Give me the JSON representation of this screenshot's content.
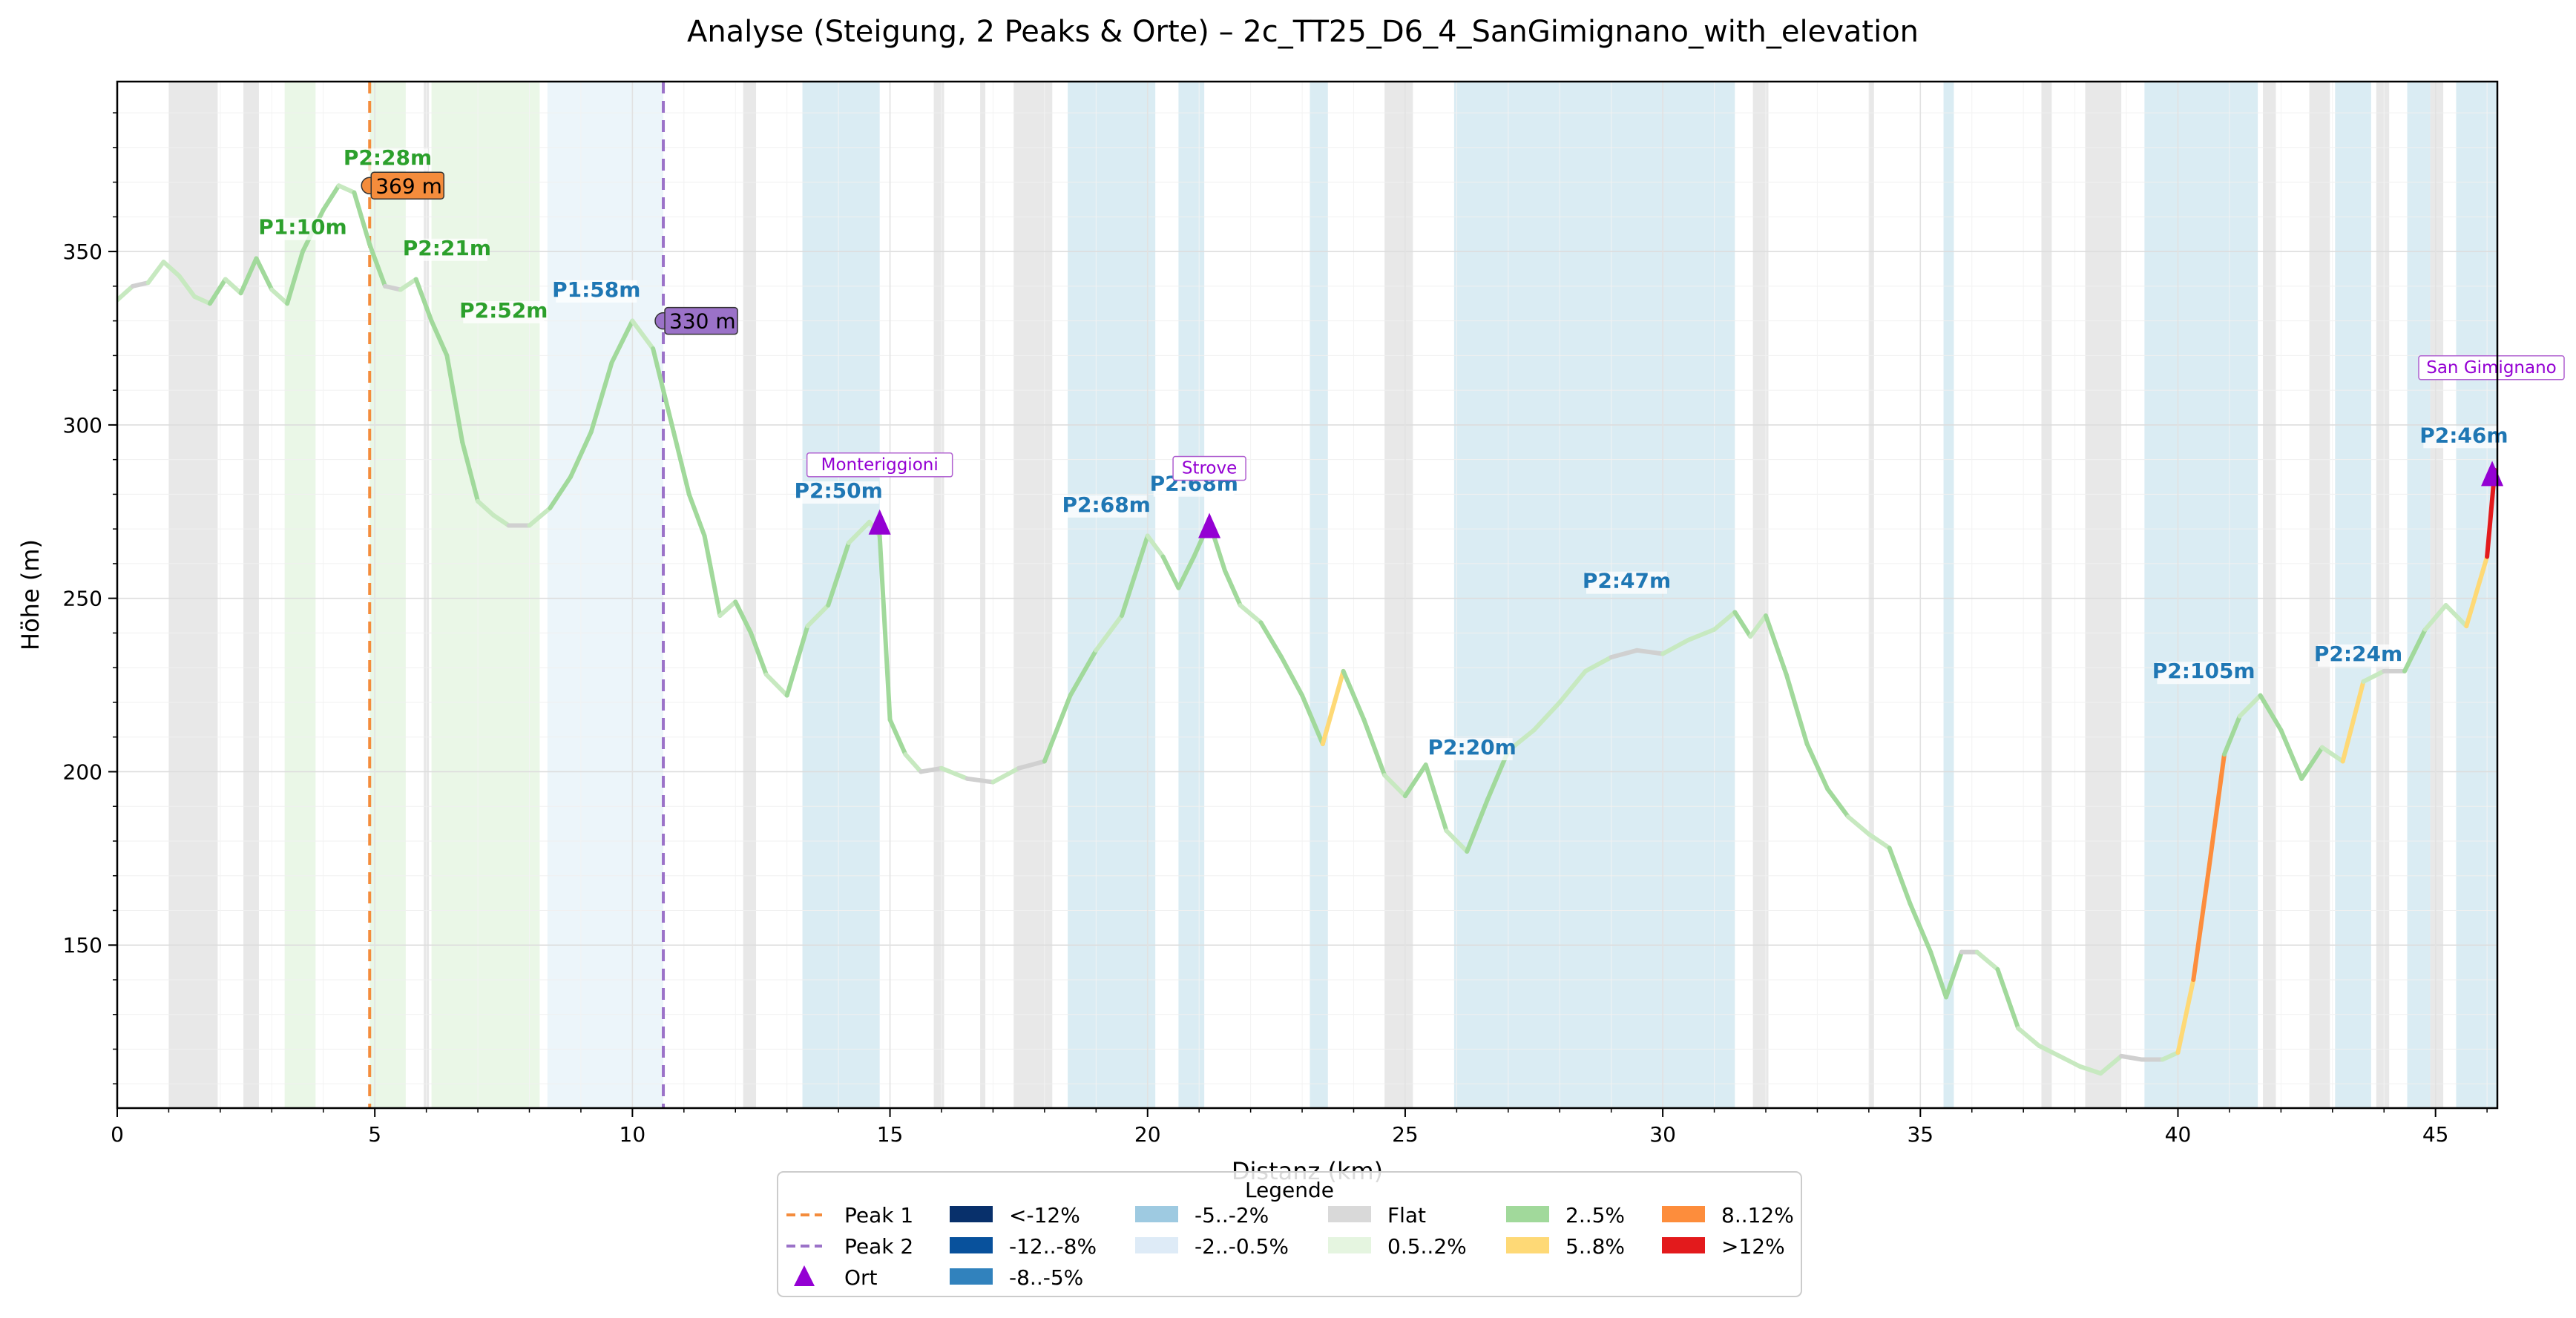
{
  "chart_data": {
    "type": "line",
    "title": "Analyse (Steigung, 2 Peaks & Orte) – 2c_TT25_D6_4_SanGimignano_with_elevation",
    "xlabel": "Distanz (km)",
    "ylabel": "Höhe (m)",
    "xlim": [
      0,
      46.2
    ],
    "ylim": [
      103,
      399
    ],
    "x_ticks": [
      0,
      5,
      10,
      15,
      20,
      25,
      30,
      35,
      40,
      45
    ],
    "y_ticks": [
      150,
      200,
      250,
      300,
      350
    ],
    "grid": true,
    "legend_position": "bottom-center",
    "series": [
      {
        "x": [
          0,
          0.3,
          0.6,
          0.9,
          1.2,
          1.5,
          1.8,
          2.1,
          2.4,
          2.7,
          3.0,
          3.3,
          3.6,
          4.0,
          4.3,
          4.6,
          4.9,
          5.2,
          5.5,
          5.8,
          6.1,
          6.4,
          6.7,
          7.0,
          7.3,
          7.6,
          8.0,
          8.4,
          8.8,
          9.2,
          9.6,
          10.0,
          10.4,
          10.8,
          11.1,
          11.4,
          11.7,
          12.0,
          12.3,
          12.6,
          13.0,
          13.4,
          13.8,
          14.2,
          14.6,
          14.8,
          15.0,
          15.3,
          15.6,
          16.0,
          16.5,
          17.0,
          17.5,
          18.0,
          18.5,
          19.0,
          19.5,
          20.0,
          20.3,
          20.6,
          20.9,
          21.2,
          21.5,
          21.8,
          22.2,
          22.6,
          23.0,
          23.4,
          23.8,
          24.2,
          24.6,
          25.0,
          25.4,
          25.8,
          26.2,
          26.6,
          27.0,
          27.5,
          28.0,
          28.5,
          29.0,
          29.5,
          30.0,
          30.5,
          31.0,
          31.4,
          31.7,
          32.0,
          32.4,
          32.8,
          33.2,
          33.6,
          34.0,
          34.4,
          34.8,
          35.2,
          35.5,
          35.8,
          36.1,
          36.5,
          36.9,
          37.3,
          37.7,
          38.1,
          38.5,
          38.9,
          39.3,
          39.7,
          40.0,
          40.3,
          40.6,
          40.9,
          41.2,
          41.6,
          42.0,
          42.4,
          42.8,
          43.2,
          43.6,
          44.0,
          44.4,
          44.8,
          45.2,
          45.6,
          46.0,
          46.15
        ],
        "values": [
          336,
          340,
          341,
          347,
          343,
          337,
          335,
          342,
          338,
          348,
          339,
          335,
          350,
          362,
          369,
          367,
          352,
          340,
          339,
          342,
          330,
          320,
          295,
          278,
          274,
          271,
          271,
          276,
          285,
          298,
          318,
          330,
          322,
          298,
          280,
          268,
          245,
          249,
          240,
          228,
          222,
          242,
          248,
          266,
          272,
          268,
          215,
          205,
          200,
          201,
          198,
          197,
          201,
          203,
          222,
          235,
          245,
          268,
          262,
          253,
          262,
          272,
          258,
          248,
          243,
          233,
          222,
          208,
          229,
          215,
          199,
          193,
          202,
          183,
          177,
          192,
          206,
          212,
          220,
          229,
          233,
          235,
          234,
          238,
          241,
          246,
          239,
          245,
          228,
          208,
          195,
          187,
          182,
          178,
          162,
          148,
          135,
          148,
          148,
          143,
          126,
          121,
          118,
          115,
          113,
          118,
          117,
          117,
          119,
          140,
          172,
          205,
          216,
          222,
          212,
          198,
          207,
          203,
          226,
          229,
          229,
          241,
          248,
          242,
          262,
          287
        ]
      }
    ],
    "peaks": [
      {
        "label": "369 m",
        "x": 4.9,
        "y": 369,
        "color": "#f48c3c"
      },
      {
        "label": "330 m",
        "x": 10.6,
        "y": 330,
        "color": "#9b72c8"
      }
    ],
    "places": [
      {
        "name": "Monteriggioni",
        "x": 14.8,
        "y": 272
      },
      {
        "name": "Strove",
        "x": 21.2,
        "y": 271
      },
      {
        "name": "San Gimignano",
        "x": 46.1,
        "y": 286
      }
    ],
    "segment_labels": [
      {
        "text": "P1:10m",
        "x": 3.6,
        "y": 355,
        "color": "#2ca02c"
      },
      {
        "text": "P2:28m",
        "x": 5.25,
        "y": 375,
        "color": "#2ca02c"
      },
      {
        "text": "P2:21m",
        "x": 6.4,
        "y": 349,
        "color": "#2ca02c"
      },
      {
        "text": "P2:52m",
        "x": 7.5,
        "y": 331,
        "color": "#2ca02c"
      },
      {
        "text": "P1:58m",
        "x": 9.3,
        "y": 337,
        "color": "#1f77b4"
      },
      {
        "text": "P2:50m",
        "x": 14.0,
        "y": 279,
        "color": "#1f77b4"
      },
      {
        "text": "P2:68m",
        "x": 19.2,
        "y": 275,
        "color": "#1f77b4"
      },
      {
        "text": "P2:68m",
        "x": 20.9,
        "y": 281,
        "color": "#1f77b4"
      },
      {
        "text": "P2:47m",
        "x": 29.3,
        "y": 253,
        "color": "#1f77b4"
      },
      {
        "text": "P2:20m",
        "x": 26.3,
        "y": 205,
        "color": "#1f77b4"
      },
      {
        "text": "P2:105m",
        "x": 40.5,
        "y": 227,
        "color": "#1f77b4"
      },
      {
        "text": "P2:24m",
        "x": 43.5,
        "y": 232,
        "color": "#1f77b4"
      },
      {
        "text": "P2:46m",
        "x": 45.55,
        "y": 295,
        "color": "#1f77b4"
      }
    ],
    "peak_lines": [
      {
        "x": 4.9,
        "color": "#f48c3c"
      },
      {
        "x": 10.6,
        "color": "#9b72c8"
      }
    ],
    "bands": [
      {
        "x0": 1.0,
        "x1": 1.95,
        "color": "#e0e0e0"
      },
      {
        "x0": 2.45,
        "x1": 2.75,
        "color": "#e0e0e0"
      },
      {
        "x0": 3.25,
        "x1": 3.85,
        "color": "#e3f4df"
      },
      {
        "x0": 4.9,
        "x1": 5.6,
        "color": "#e3f4df"
      },
      {
        "x0": 5.95,
        "x1": 6.05,
        "color": "#e0e0e0"
      },
      {
        "x0": 6.1,
        "x1": 8.2,
        "color": "#e3f4df"
      },
      {
        "x0": 8.35,
        "x1": 10.6,
        "color": "#e6f2f8"
      },
      {
        "x0": 12.15,
        "x1": 12.4,
        "color": "#e0e0e0"
      },
      {
        "x0": 13.3,
        "x1": 14.8,
        "color": "#cde6ef"
      },
      {
        "x0": 15.85,
        "x1": 16.05,
        "color": "#e0e0e0"
      },
      {
        "x0": 16.75,
        "x1": 16.85,
        "color": "#e0e0e0"
      },
      {
        "x0": 17.4,
        "x1": 18.15,
        "color": "#e0e0e0"
      },
      {
        "x0": 18.45,
        "x1": 20.15,
        "color": "#cde6ef"
      },
      {
        "x0": 20.6,
        "x1": 21.1,
        "color": "#cde6ef"
      },
      {
        "x0": 23.15,
        "x1": 23.5,
        "color": "#cde6ef"
      },
      {
        "x0": 24.6,
        "x1": 25.15,
        "color": "#e0e0e0"
      },
      {
        "x0": 25.95,
        "x1": 31.4,
        "color": "#cde6ef"
      },
      {
        "x0": 31.75,
        "x1": 32.05,
        "color": "#e0e0e0"
      },
      {
        "x0": 34.0,
        "x1": 34.1,
        "color": "#e0e0e0"
      },
      {
        "x0": 35.45,
        "x1": 35.65,
        "color": "#cde6ef"
      },
      {
        "x0": 37.35,
        "x1": 37.55,
        "color": "#e0e0e0"
      },
      {
        "x0": 38.2,
        "x1": 38.9,
        "color": "#e0e0e0"
      },
      {
        "x0": 39.35,
        "x1": 41.55,
        "color": "#cde6ef"
      },
      {
        "x0": 41.65,
        "x1": 41.9,
        "color": "#e0e0e0"
      },
      {
        "x0": 42.55,
        "x1": 42.95,
        "color": "#e0e0e0"
      },
      {
        "x0": 43.05,
        "x1": 43.75,
        "color": "#cde6ef"
      },
      {
        "x0": 43.85,
        "x1": 44.1,
        "color": "#e0e0e0"
      },
      {
        "x0": 44.45,
        "x1": 44.9,
        "color": "#cde6ef"
      },
      {
        "x0": 44.9,
        "x1": 45.15,
        "color": "#e0e0e0"
      },
      {
        "x0": 45.4,
        "x1": 46.2,
        "color": "#cde6ef"
      }
    ],
    "legend": {
      "title": "Legende",
      "columns": [
        [
          {
            "kind": "dash",
            "color": "#f48c3c",
            "label": "Peak 1"
          },
          {
            "kind": "dash",
            "color": "#9b72c8",
            "label": "Peak 2"
          },
          {
            "kind": "triangle",
            "color": "#9400d3",
            "label": "Ort"
          }
        ],
        [
          {
            "kind": "patch",
            "color": "#08306b",
            "label": "<-12%"
          },
          {
            "kind": "patch",
            "color": "#08519c",
            "label": "-12..-8%"
          },
          {
            "kind": "patch",
            "color": "#3182bd",
            "label": "-8..-5%"
          }
        ],
        [
          {
            "kind": "patch",
            "color": "#9ecae1",
            "label": "-5..-2%"
          },
          {
            "kind": "patch",
            "color": "#deebf7",
            "label": "-2..-0.5%"
          }
        ],
        [
          {
            "kind": "patch",
            "color": "#d9d9d9",
            "label": "Flat"
          },
          {
            "kind": "patch",
            "color": "#e5f5e0",
            "label": "0.5..2%"
          }
        ],
        [
          {
            "kind": "patch",
            "color": "#a1d99b",
            "label": "2..5%"
          },
          {
            "kind": "patch",
            "color": "#fed976",
            "label": "5..8%"
          }
        ],
        [
          {
            "kind": "patch",
            "color": "#fd8d3c",
            "label": "8..12%"
          },
          {
            "kind": "patch",
            "color": "#e31a1c",
            "label": ">12%"
          }
        ]
      ]
    }
  }
}
